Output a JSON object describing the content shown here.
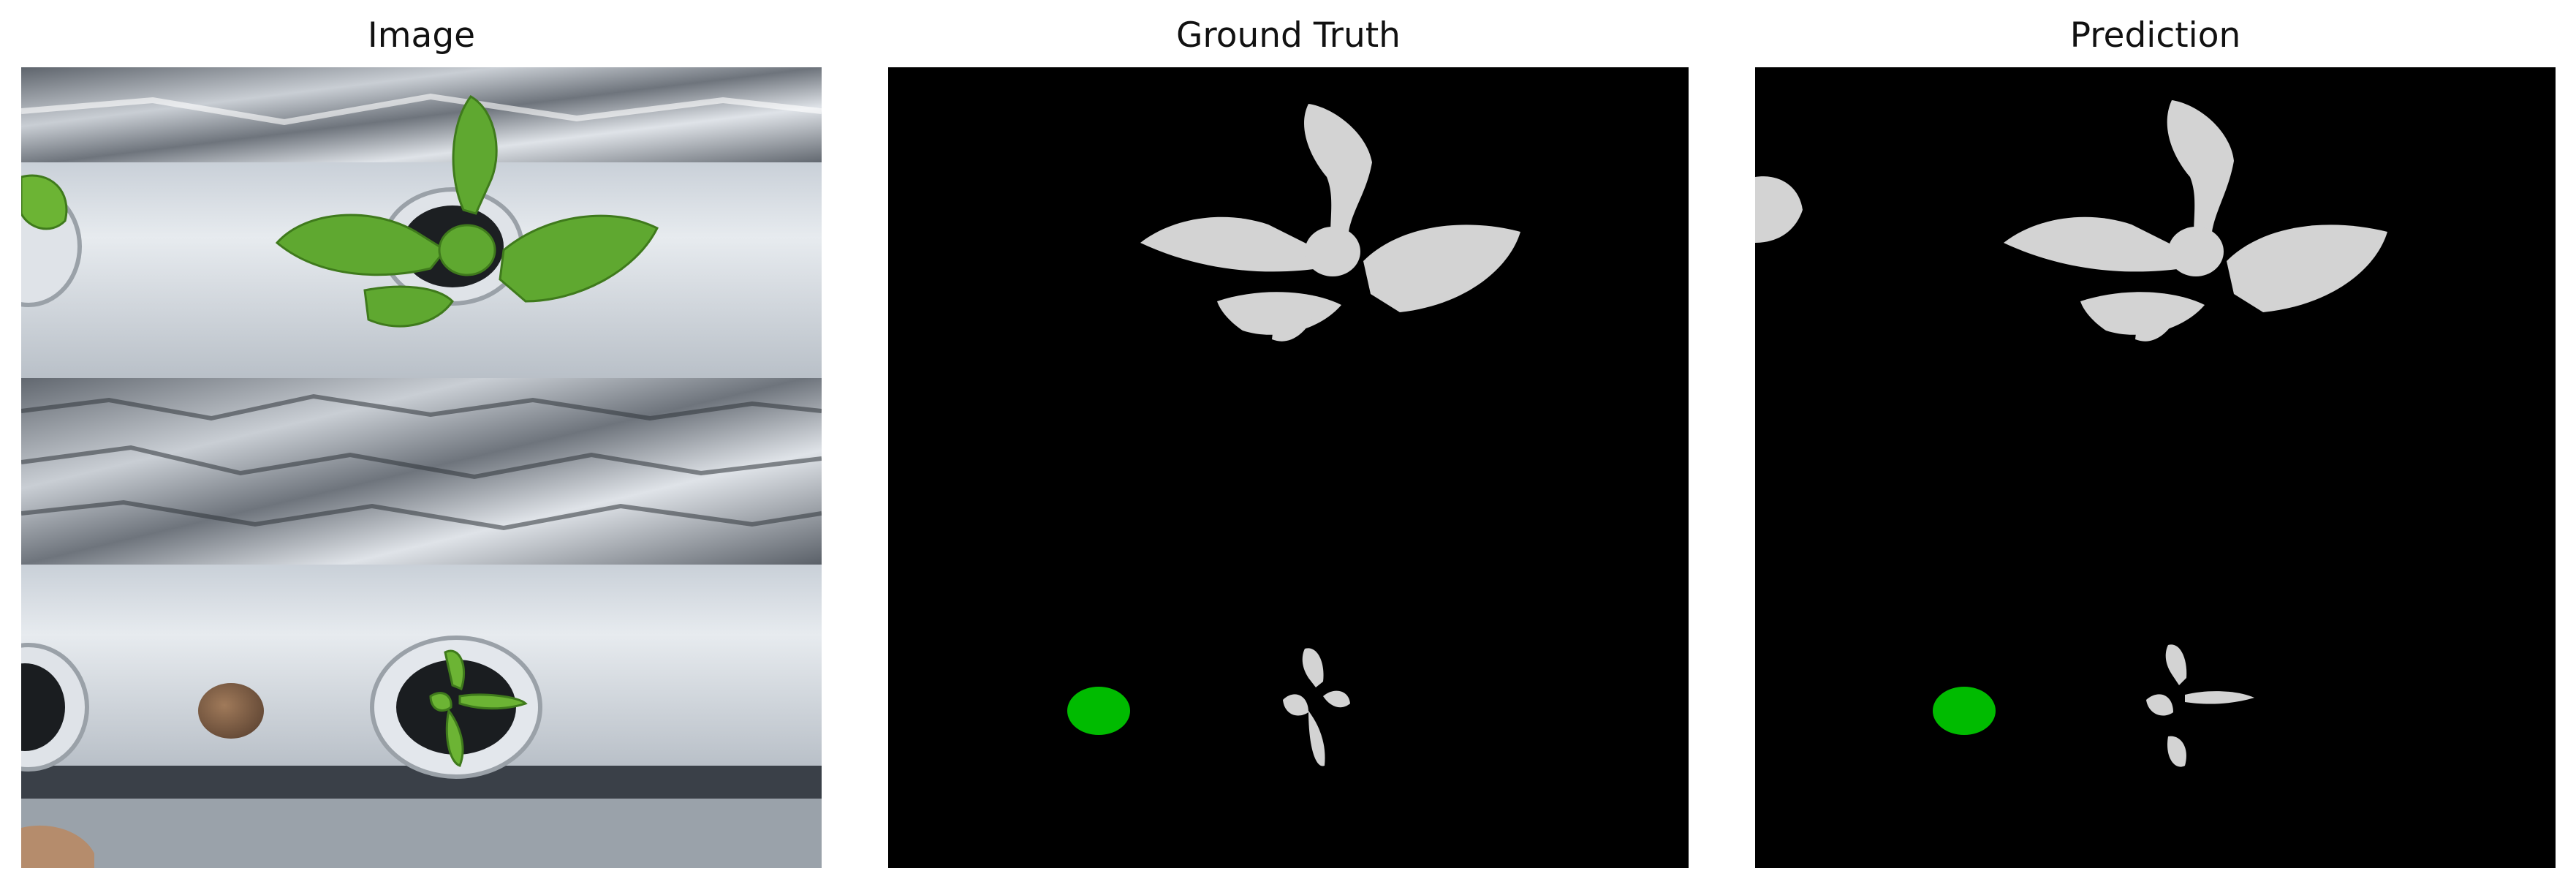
{
  "panels": [
    {
      "title": "Image"
    },
    {
      "title": "Ground Truth"
    },
    {
      "title": "Prediction"
    }
  ],
  "colors": {
    "background": "#ffffff",
    "mask_background": "#000000",
    "plant_class": "#d3d3d3",
    "coin_class": "#00bb00"
  }
}
